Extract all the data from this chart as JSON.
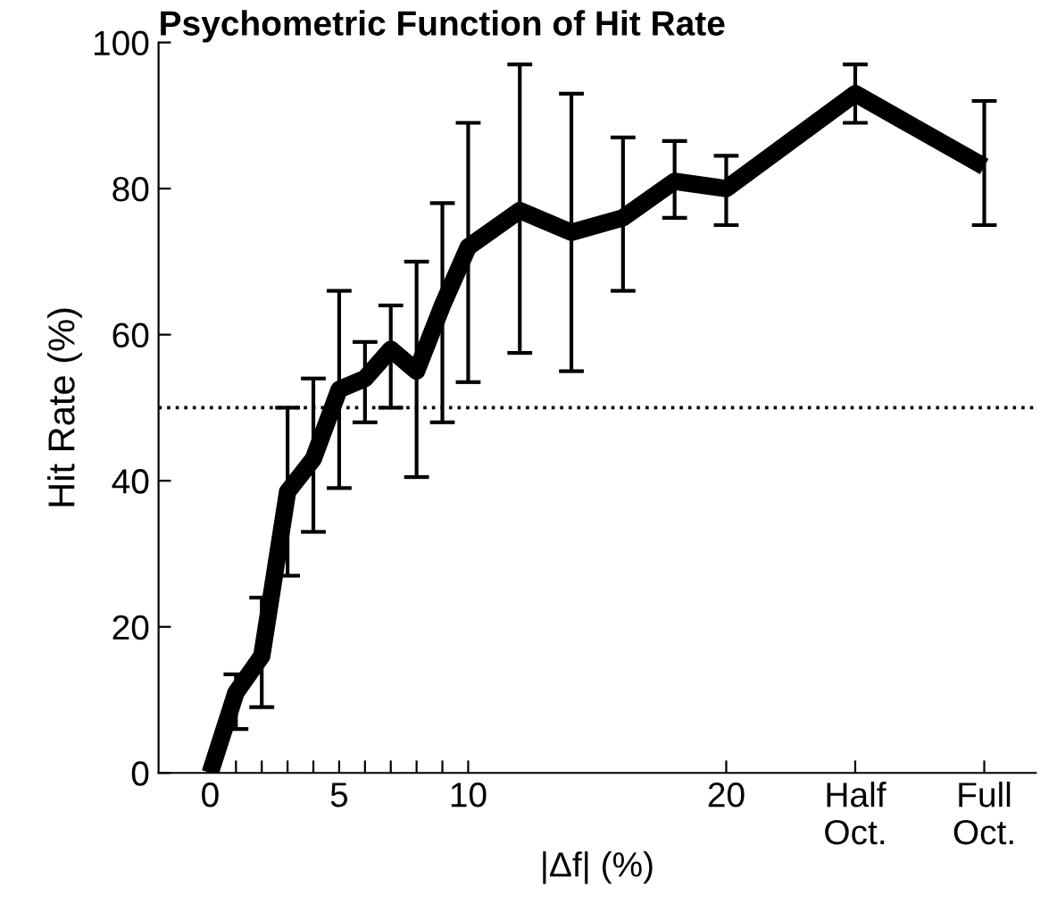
{
  "chart_data": {
    "type": "line",
    "title": "Psychometric Function of Hit Rate",
    "xlabel": "|Δf| (%)",
    "ylabel": "Hit Rate (%)",
    "xlim": [
      -2,
      32
    ],
    "ylim": [
      0,
      100
    ],
    "xticks": [
      0,
      {
        "value": 1,
        "label": null
      },
      {
        "value": 2,
        "label": null
      },
      {
        "value": 3,
        "label": null
      },
      {
        "value": 4,
        "label": null
      },
      5,
      {
        "value": 6,
        "label": null
      },
      {
        "value": 7,
        "label": null
      },
      {
        "value": 8,
        "label": null
      },
      {
        "value": 9,
        "label": null
      },
      10,
      20,
      {
        "value": 25,
        "label": "Half\nOct."
      },
      {
        "value": 30,
        "label": "Full\nOct."
      }
    ],
    "yticks": [
      0,
      20,
      40,
      60,
      80,
      100
    ],
    "x": [
      0,
      1,
      2,
      3,
      4,
      5,
      6,
      7,
      8,
      9,
      10,
      12,
      14,
      16,
      18,
      20,
      25,
      30
    ],
    "series": [
      {
        "color": "#000000",
        "values": [
          0,
          11,
          16,
          38.5,
          43,
          52.5,
          54,
          58,
          55,
          64,
          72,
          77,
          74,
          76,
          81,
          80,
          93,
          83
        ],
        "errors": [
          null,
          [
            6,
            13.5
          ],
          [
            9,
            24
          ],
          [
            27,
            50
          ],
          [
            33,
            54
          ],
          [
            39,
            66
          ],
          [
            48,
            59
          ],
          [
            50,
            64
          ],
          [
            40.5,
            70
          ],
          [
            48,
            78
          ],
          [
            53.5,
            89
          ],
          [
            57.5,
            97
          ],
          [
            55,
            93
          ],
          [
            66,
            87
          ],
          [
            76,
            86.5
          ],
          [
            75,
            84.5
          ],
          [
            89,
            97
          ],
          [
            75,
            92
          ]
        ]
      }
    ],
    "ref_lines": [
      {
        "axis": "y",
        "value": 50,
        "color": "#000000",
        "line_style": "dotted"
      }
    ],
    "grid": false,
    "legend": false,
    "marker": "none",
    "line_style": "solid"
  }
}
